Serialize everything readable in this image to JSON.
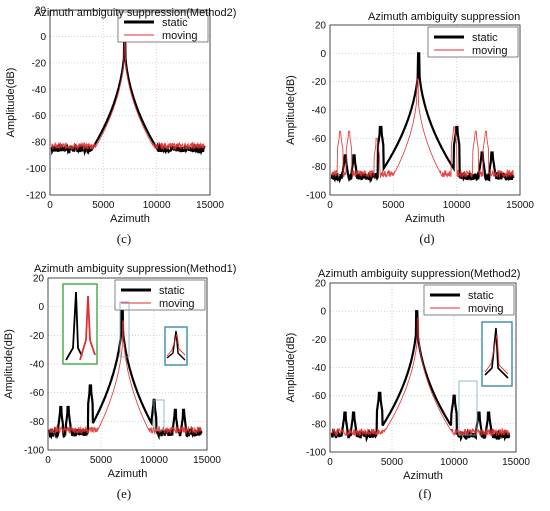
{
  "colors": {
    "static": "#000000",
    "moving": "#e03030",
    "inset_green": "#3daa3d",
    "inset_teal": "#3a8aaa",
    "grid": "#c9c9c9"
  },
  "chart_data": [
    {
      "panel": "c",
      "caption": "(c)",
      "type": "line",
      "title": "Azimuth ambiguity suppression(Method2)",
      "xlabel": "Azimuth",
      "ylabel": "Amplitude(dB)",
      "xlim": [
        0,
        15000
      ],
      "ylim": [
        -120,
        20
      ],
      "xticks": [
        "0",
        "5000",
        "10000",
        "15000"
      ],
      "yticks": [
        "-120",
        "-100",
        "-80",
        "-60",
        "-40",
        "-20",
        "0",
        "20"
      ],
      "grid": true,
      "legend_position": "top-right",
      "series": [
        {
          "name": "static",
          "peaks": [
            {
              "x": 7000,
              "y": 0
            }
          ],
          "baseline": -85
        },
        {
          "name": "moving",
          "peaks": [
            {
              "x": 7000,
              "y": -3
            }
          ],
          "baseline": -83
        }
      ]
    },
    {
      "panel": "d",
      "caption": "(d)",
      "type": "line",
      "title": "Azimuth ambiguity suppression",
      "xlabel": "Azimuth",
      "ylabel": "Amplitude(dB)",
      "xlim": [
        0,
        15000
      ],
      "ylim": [
        -100,
        20
      ],
      "xticks": [
        "0",
        "5000",
        "10000",
        "15000"
      ],
      "yticks": [
        "-100",
        "-80",
        "-60",
        "-40",
        "-20",
        "0",
        "20"
      ],
      "grid": true,
      "legend_position": "top-right",
      "series": [
        {
          "name": "static",
          "peaks": [
            {
              "x": 7000,
              "y": 0
            },
            {
              "x": 4000,
              "y": -52
            },
            {
              "x": 10000,
              "y": -52
            },
            {
              "x": 1200,
              "y": -72
            },
            {
              "x": 1900,
              "y": -72
            },
            {
              "x": 12000,
              "y": -70
            },
            {
              "x": 12800,
              "y": -70
            }
          ],
          "baseline": -87
        },
        {
          "name": "moving",
          "peaks": [
            {
              "x": 6900,
              "y": -18
            },
            {
              "x": 3700,
              "y": -60
            },
            {
              "x": 9800,
              "y": -52
            },
            {
              "x": 800,
              "y": -55
            },
            {
              "x": 1500,
              "y": -55
            },
            {
              "x": 11500,
              "y": -55
            },
            {
              "x": 12300,
              "y": -55
            }
          ],
          "baseline": -85
        }
      ]
    },
    {
      "panel": "e",
      "caption": "(e)",
      "type": "line",
      "title": "Azimuth ambiguity suppression(Method1)",
      "xlabel": "Azimuth",
      "ylabel": "Amplitude(dB)",
      "xlim": [
        0,
        15000
      ],
      "ylim": [
        -100,
        20
      ],
      "xticks": [
        "0",
        "5000",
        "10000",
        "15000"
      ],
      "yticks": [
        "-100",
        "-80",
        "-60",
        "-40",
        "-20",
        "0",
        "20"
      ],
      "grid": true,
      "legend_position": "top-right",
      "series": [
        {
          "name": "static",
          "peaks": [
            {
              "x": 7000,
              "y": 0
            },
            {
              "x": 4000,
              "y": -55
            },
            {
              "x": 10000,
              "y": -65
            },
            {
              "x": 1200,
              "y": -70
            },
            {
              "x": 1900,
              "y": -70
            },
            {
              "x": 12000,
              "y": -72
            },
            {
              "x": 12800,
              "y": -72
            }
          ],
          "baseline": -88
        },
        {
          "name": "moving",
          "peaks": [
            {
              "x": 7100,
              "y": -10
            }
          ],
          "baseline": -86
        }
      ]
    },
    {
      "panel": "f",
      "caption": "(f)",
      "type": "line",
      "title": "Azimuth ambiguity suppression(Method2)",
      "xlabel": "Azimuth",
      "ylabel": "Amplitude(dB)",
      "xlim": [
        0,
        15000
      ],
      "ylim": [
        -100,
        20
      ],
      "xticks": [
        "0",
        "5000",
        "10000",
        "15000"
      ],
      "yticks": [
        "-100",
        "-80",
        "-60",
        "-40",
        "-20",
        "0",
        "20"
      ],
      "grid": true,
      "legend_position": "top-right",
      "series": [
        {
          "name": "static",
          "peaks": [
            {
              "x": 7000,
              "y": 0
            },
            {
              "x": 4000,
              "y": -58
            },
            {
              "x": 10000,
              "y": -60
            },
            {
              "x": 1200,
              "y": -72
            },
            {
              "x": 1900,
              "y": -72
            },
            {
              "x": 12000,
              "y": -72
            },
            {
              "x": 12800,
              "y": -72
            }
          ],
          "baseline": -88
        },
        {
          "name": "moving",
          "peaks": [
            {
              "x": 7100,
              "y": -5
            }
          ],
          "baseline": -86
        }
      ]
    }
  ]
}
